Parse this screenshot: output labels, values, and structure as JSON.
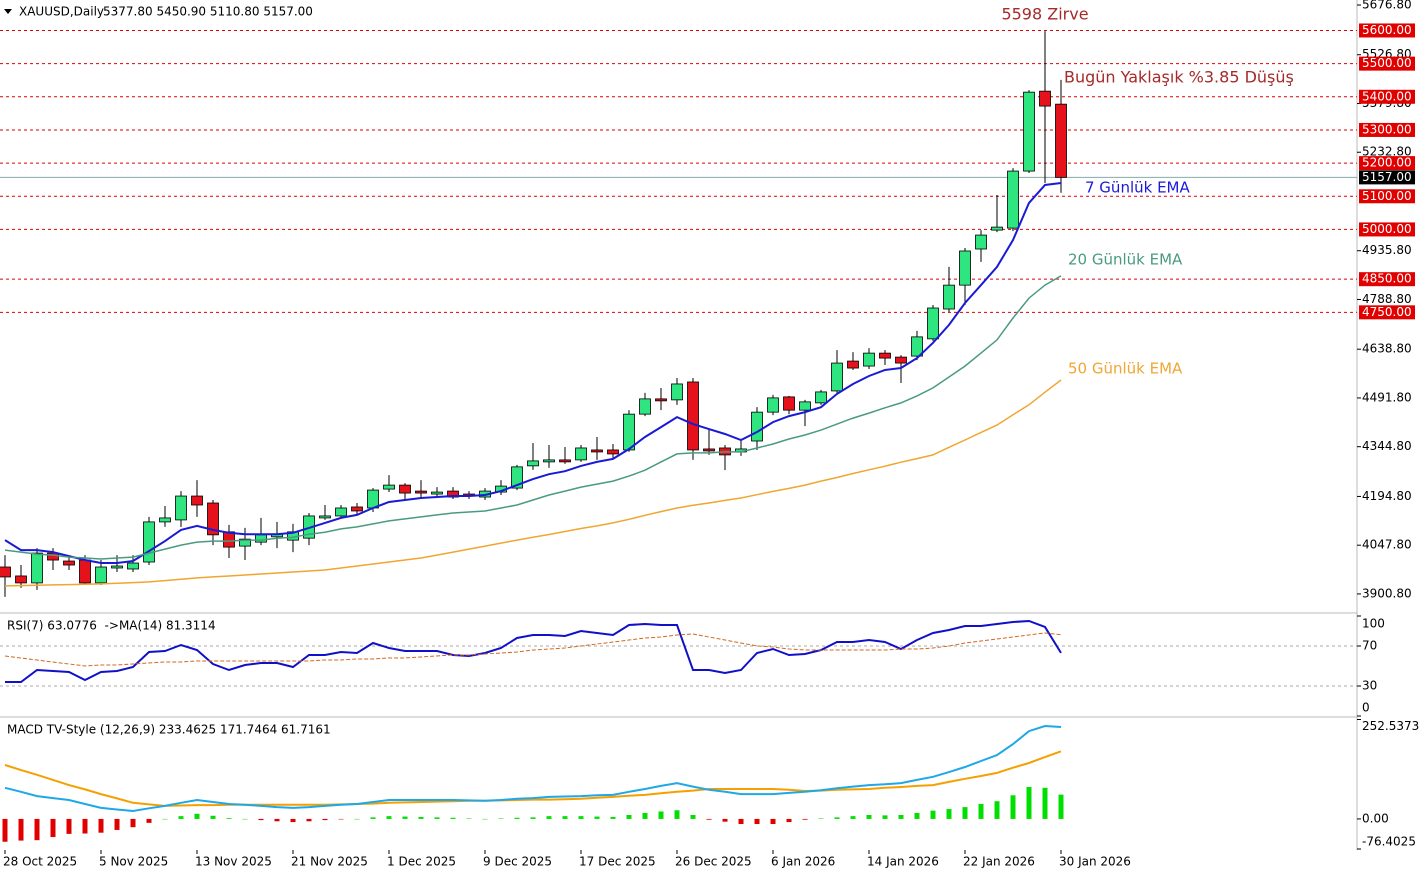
{
  "chart_data": [
    {
      "type": "candlestick",
      "symbol": "XAUUSD,Daily",
      "ohlc_label": "5377.80 5450.90 5110.80 5157.00",
      "categories": [
        "28 Oct 2025",
        null,
        null,
        null,
        null,
        null,
        "5 Nov 2025",
        null,
        null,
        null,
        null,
        null,
        "13 Nov 2025",
        null,
        null,
        null,
        null,
        null,
        "21 Nov 2025",
        null,
        null,
        null,
        null,
        null,
        "1 Dec 2025",
        null,
        null,
        null,
        null,
        null,
        "9 Dec 2025",
        null,
        null,
        null,
        null,
        null,
        "17 Dec 2025",
        null,
        null,
        null,
        null,
        null,
        "26 Dec 2025",
        null,
        null,
        null,
        null,
        null,
        "6 Jan 2026",
        null,
        null,
        null,
        null,
        null,
        "14 Jan 2026",
        null,
        null,
        null,
        null,
        null,
        "22 Jan 2026",
        null,
        null,
        null,
        null,
        null,
        "30 Jan 2026"
      ],
      "open": [
        3982,
        3955,
        3934,
        4024,
        4000,
        4003,
        3934,
        3979,
        3976,
        3997,
        4118,
        4124,
        4196,
        4175,
        4088,
        4045,
        4057,
        4073,
        4063,
        4069,
        4130,
        4136,
        4163,
        4160,
        4217,
        4229,
        4211,
        4202,
        4211,
        4202,
        4193,
        4208,
        4220,
        4287,
        4299,
        4305,
        4305,
        4335,
        4335,
        4335,
        4443,
        4489,
        4486,
        4540,
        4338,
        4341,
        4329,
        4362,
        4449,
        4495,
        4455,
        4477,
        4513,
        4603,
        4588,
        4627,
        4615,
        4618,
        4670,
        4760,
        4832,
        4941,
        4998,
        5004,
        5176,
        5417,
        5377.8
      ],
      "high": [
        4018,
        3988,
        4039,
        4039,
        4018,
        4018,
        4003,
        4018,
        4018,
        4133,
        4166,
        4211,
        4244,
        4184,
        4109,
        4100,
        4130,
        4118,
        4112,
        4145,
        4169,
        4169,
        4175,
        4220,
        4259,
        4235,
        4244,
        4223,
        4223,
        4211,
        4220,
        4244,
        4290,
        4356,
        4350,
        4344,
        4350,
        4374,
        4353,
        4455,
        4507,
        4522,
        4552,
        4552,
        4395,
        4350,
        4365,
        4464,
        4501,
        4498,
        4486,
        4516,
        4636,
        4630,
        4642,
        4636,
        4621,
        4694,
        4772,
        4887,
        4944,
        4998,
        5104,
        5185,
        5420,
        5598,
        5450.9
      ],
      "low": [
        3892,
        3919,
        3913,
        3973,
        3973,
        3928,
        3928,
        3967,
        3967,
        3988,
        4103,
        4103,
        4133,
        4048,
        4009,
        4003,
        4048,
        4039,
        4027,
        4048,
        4124,
        4130,
        4142,
        4148,
        4208,
        4184,
        4190,
        4196,
        4187,
        4187,
        4184,
        4199,
        4214,
        4275,
        4281,
        4293,
        4299,
        4305,
        4311,
        4329,
        4437,
        4455,
        4471,
        4305,
        4320,
        4274,
        4317,
        4335,
        4440,
        4443,
        4407,
        4471,
        4507,
        4576,
        4579,
        4591,
        4537,
        4606,
        4664,
        4751,
        4772,
        4902,
        4992,
        4995,
        5170,
        5140,
        5110.8
      ],
      "close": [
        3952,
        3934,
        4024,
        4003,
        3988,
        3934,
        3982,
        3985,
        3994,
        4118,
        4130,
        4196,
        4169,
        4079,
        4042,
        4066,
        4079,
        4082,
        4088,
        4136,
        4136,
        4160,
        4151,
        4214,
        4229,
        4205,
        4205,
        4208,
        4193,
        4196,
        4211,
        4226,
        4284,
        4302,
        4305,
        4299,
        4341,
        4329,
        4323,
        4443,
        4489,
        4483,
        4534,
        4335,
        4332,
        4320,
        4338,
        4449,
        4492,
        4455,
        4480,
        4510,
        4597,
        4582,
        4627,
        4612,
        4597,
        4676,
        4763,
        4832,
        4935,
        4983,
        5007,
        5176,
        5414,
        5372,
        5157
      ],
      "up_color": "#2ee57f",
      "down_color": "#e5121b",
      "series": [
        {
          "name": "7 Günlük EMA",
          "color": "#1a1ad6",
          "values": [
            4063,
            4033,
            4033,
            4027,
            4015,
            4003,
            3994,
            3994,
            4000,
            4030,
            4060,
            4094,
            4106,
            4094,
            4085,
            4081,
            4081,
            4081,
            4085,
            4100,
            4115,
            4130,
            4139,
            4160,
            4178,
            4184,
            4190,
            4193,
            4196,
            4196,
            4199,
            4211,
            4229,
            4247,
            4262,
            4271,
            4287,
            4299,
            4308,
            4338,
            4374,
            4404,
            4434,
            4413,
            4398,
            4383,
            4365,
            4389,
            4419,
            4437,
            4449,
            4464,
            4504,
            4534,
            4558,
            4576,
            4582,
            4612,
            4658,
            4712,
            4778,
            4832,
            4887,
            4968,
            5080,
            5134,
            5140
          ]
        },
        {
          "name": "20 Günlük EMA",
          "color": "#4a9a82",
          "values": [
            4033,
            4027,
            4021,
            4018,
            4012,
            4009,
            4006,
            4009,
            4012,
            4024,
            4036,
            4048,
            4057,
            4060,
            4060,
            4063,
            4063,
            4069,
            4072,
            4081,
            4087,
            4097,
            4103,
            4112,
            4121,
            4127,
            4133,
            4139,
            4145,
            4148,
            4151,
            4160,
            4169,
            4184,
            4199,
            4211,
            4223,
            4232,
            4241,
            4256,
            4274,
            4299,
            4323,
            4326,
            4326,
            4329,
            4329,
            4341,
            4353,
            4368,
            4380,
            4395,
            4413,
            4431,
            4446,
            4462,
            4477,
            4498,
            4522,
            4555,
            4588,
            4627,
            4667,
            4733,
            4793,
            4832,
            4860
          ]
        },
        {
          "name": "50 Günlük EMA",
          "color": "#f0a630",
          "values": [
            3925,
            3926,
            3927,
            3928,
            3929,
            3930,
            3931,
            3933,
            3935,
            3937,
            3941,
            3945,
            3949,
            3952,
            3955,
            3958,
            3961,
            3964,
            3967,
            3970,
            3973,
            3979,
            3985,
            3991,
            3997,
            4003,
            4009,
            4018,
            4027,
            4036,
            4045,
            4054,
            4063,
            4072,
            4080,
            4089,
            4098,
            4106,
            4115,
            4126,
            4138,
            4149,
            4160,
            4168,
            4175,
            4183,
            4190,
            4200,
            4210,
            4219,
            4229,
            4241,
            4252,
            4264,
            4275,
            4286,
            4298,
            4309,
            4320,
            4343,
            4365,
            4388,
            4410,
            4441,
            4471,
            4509,
            4546
          ]
        }
      ],
      "ylim": [
        3846.3,
        5691.9
      ],
      "yticks": [
        {
          "value": 5676.8,
          "label": "5676.80"
        },
        {
          "value": 5526.8,
          "label": "5526.80"
        },
        {
          "value": 5379.8,
          "label": "5379.80"
        },
        {
          "value": 5232.8,
          "label": "5232.80"
        },
        {
          "value": 4935.8,
          "label": "4935.80"
        },
        {
          "value": 4788.8,
          "label": "4788.80"
        },
        {
          "value": 4638.8,
          "label": "4638.80"
        },
        {
          "value": 4491.8,
          "label": "4491.80"
        },
        {
          "value": 4344.8,
          "label": "4344.80"
        },
        {
          "value": 4194.8,
          "label": "4194.80"
        },
        {
          "value": 4047.8,
          "label": "4047.80"
        },
        {
          "value": 3900.8,
          "label": "3900.80"
        }
      ],
      "levels": [
        {
          "value": 5600,
          "label": "5600.00"
        },
        {
          "value": 5500,
          "label": "5500.00"
        },
        {
          "value": 5400,
          "label": "5400.00"
        },
        {
          "value": 5300,
          "label": "5300.00"
        },
        {
          "value": 5200,
          "label": "5200.00"
        },
        {
          "value": 5100,
          "label": "5100.00"
        },
        {
          "value": 5000,
          "label": "5000.00"
        },
        {
          "value": 4850,
          "label": "4850.00"
        },
        {
          "value": 4750,
          "label": "4750.00"
        }
      ],
      "level_color": "#e00000",
      "last_price": {
        "value": 5157,
        "label": "5157.00"
      },
      "annotations": [
        {
          "text": "5598 Zirve",
          "color": "#a52a2a"
        },
        {
          "text": "Bugün Yaklaşık %3.85 Düşüş",
          "color": "#a52a2a"
        }
      ]
    },
    {
      "type": "rsi",
      "title": "RSI(7) 63.0776  ->MA(14) 81.3114",
      "series": [
        {
          "color": "#1010c8",
          "values": [
            34,
            34,
            46,
            45,
            44,
            36,
            44,
            45,
            49,
            64,
            65,
            71,
            66,
            52,
            46,
            51,
            53,
            53,
            49,
            61,
            61,
            64,
            63,
            73,
            68,
            65,
            65,
            65,
            61,
            60,
            63,
            68,
            78,
            81,
            81,
            80,
            85,
            83,
            81,
            91,
            92,
            91,
            91,
            46,
            46,
            43,
            46,
            63,
            67,
            61,
            62,
            66,
            74,
            74,
            76,
            74,
            67,
            76,
            83,
            86,
            90,
            90,
            92,
            94,
            95,
            89,
            63.0776
          ]
        },
        {
          "color": "#d2691e",
          "values": [
            60,
            58,
            56,
            54,
            52,
            50,
            51,
            51,
            52,
            53,
            54,
            54,
            55,
            55,
            55,
            55,
            55,
            55,
            55,
            55,
            56,
            56,
            57,
            57,
            58,
            58,
            59,
            60,
            61,
            61,
            62,
            63,
            64,
            66,
            67,
            68,
            70,
            72,
            74,
            76,
            78,
            79,
            81,
            82,
            79,
            76,
            73,
            70,
            69,
            67,
            66,
            66,
            66,
            66,
            66,
            66,
            67,
            67,
            68,
            70,
            73,
            75,
            77,
            79,
            81,
            83,
            81.3114
          ]
        }
      ],
      "ylim": [
        0,
        100
      ],
      "yticks": [
        100,
        70,
        30,
        0
      ]
    },
    {
      "type": "macd",
      "title": "MACD TV-Style (12,26,9) 233.4625 171.7464 61.7161",
      "macd": {
        "color": "#1ea8e8",
        "values": [
          79,
          69,
          58,
          53,
          48,
          38,
          28,
          24,
          20,
          27,
          33,
          41,
          48,
          43,
          38,
          36,
          33,
          30,
          28,
          30,
          33,
          36,
          38,
          43,
          48,
          48,
          48,
          48,
          48,
          47,
          46,
          48,
          51,
          53,
          56,
          57,
          58,
          60,
          61,
          69,
          76,
          84,
          91,
          82,
          74,
          69,
          63,
          63,
          63,
          66,
          69,
          73,
          78,
          82,
          86,
          88,
          91,
          99,
          107,
          119,
          132,
          147,
          162,
          190,
          223,
          236,
          233.4625
        ]
      },
      "signal": {
        "color": "#f5a000",
        "values": [
          137,
          124,
          112,
          99,
          86,
          75,
          63,
          52,
          41,
          37,
          33,
          34,
          35,
          35,
          36,
          36,
          36,
          36,
          36,
          36,
          36,
          37,
          38,
          39,
          41,
          42,
          43,
          44,
          45,
          46,
          46,
          47,
          48,
          49,
          49,
          50,
          51,
          54,
          56,
          59,
          61,
          65,
          69,
          72,
          76,
          76,
          76,
          76,
          76,
          74,
          71,
          72,
          74,
          75,
          76,
          79,
          81,
          84,
          86,
          94,
          102,
          109,
          117,
          130,
          142,
          157,
          171.7464
        ]
      },
      "histogram": {
        "up_color": "#00e000",
        "down_color": "#e00000",
        "values": [
          -58,
          -55,
          -54,
          -46,
          -38,
          -37,
          -35,
          -28,
          -21,
          -10,
          0,
          7,
          13,
          8,
          2,
          0,
          -3,
          -6,
          -8,
          -6,
          -3,
          -1,
          0,
          4,
          7,
          6,
          5,
          4,
          3,
          1,
          0,
          1,
          3,
          4,
          7,
          7,
          7,
          6,
          5,
          10,
          15,
          19,
          22,
          10,
          -2,
          -7,
          -13,
          -13,
          -13,
          -8,
          -2,
          1,
          4,
          7,
          10,
          9,
          10,
          15,
          21,
          25,
          30,
          38,
          45,
          60,
          81,
          79,
          61.7161
        ]
      },
      "ylim": [
        -76.4025,
        252.5373
      ],
      "yticks": [
        252.5373,
        {
          "value": 0,
          "label": "0.00"
        },
        -76.4025
      ]
    }
  ]
}
